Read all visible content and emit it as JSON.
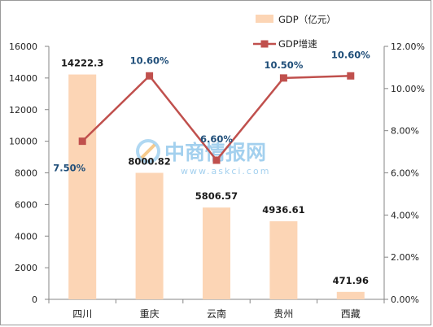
{
  "chart_data": {
    "type": "bar+line",
    "categories": [
      "四川",
      "重庆",
      "云南",
      "贵州",
      "西藏"
    ],
    "series": [
      {
        "name": "GDP（亿元）",
        "kind": "bar",
        "axis": "left",
        "values": [
          14222.3,
          8000.82,
          5806.57,
          4936.61,
          471.96
        ],
        "labels": [
          "14222.3",
          "8000.82",
          "5806.57",
          "4936.61",
          "471.96"
        ],
        "color": "#fcd5b5"
      },
      {
        "name": "GDP增速",
        "kind": "line",
        "axis": "right",
        "values": [
          7.5,
          10.6,
          6.6,
          10.5,
          10.6
        ],
        "labels": [
          "7.50%",
          "10.60%",
          "6.60%",
          "10.50%",
          "10.60%"
        ],
        "color": "#c0504d"
      }
    ],
    "y_left": {
      "min": 0,
      "max": 16000,
      "ticks": [
        "0",
        "2000",
        "4000",
        "6000",
        "8000",
        "10000",
        "12000",
        "14000",
        "16000"
      ]
    },
    "y_right": {
      "min": 0,
      "max": 12,
      "ticks": [
        "0.00%",
        "2.00%",
        "4.00%",
        "6.00%",
        "8.00%",
        "10.00%",
        "12.00%"
      ]
    },
    "grid": false,
    "legend_position": "top-right"
  },
  "watermark": {
    "text": "中商情报网",
    "url": "www.askci.com"
  }
}
